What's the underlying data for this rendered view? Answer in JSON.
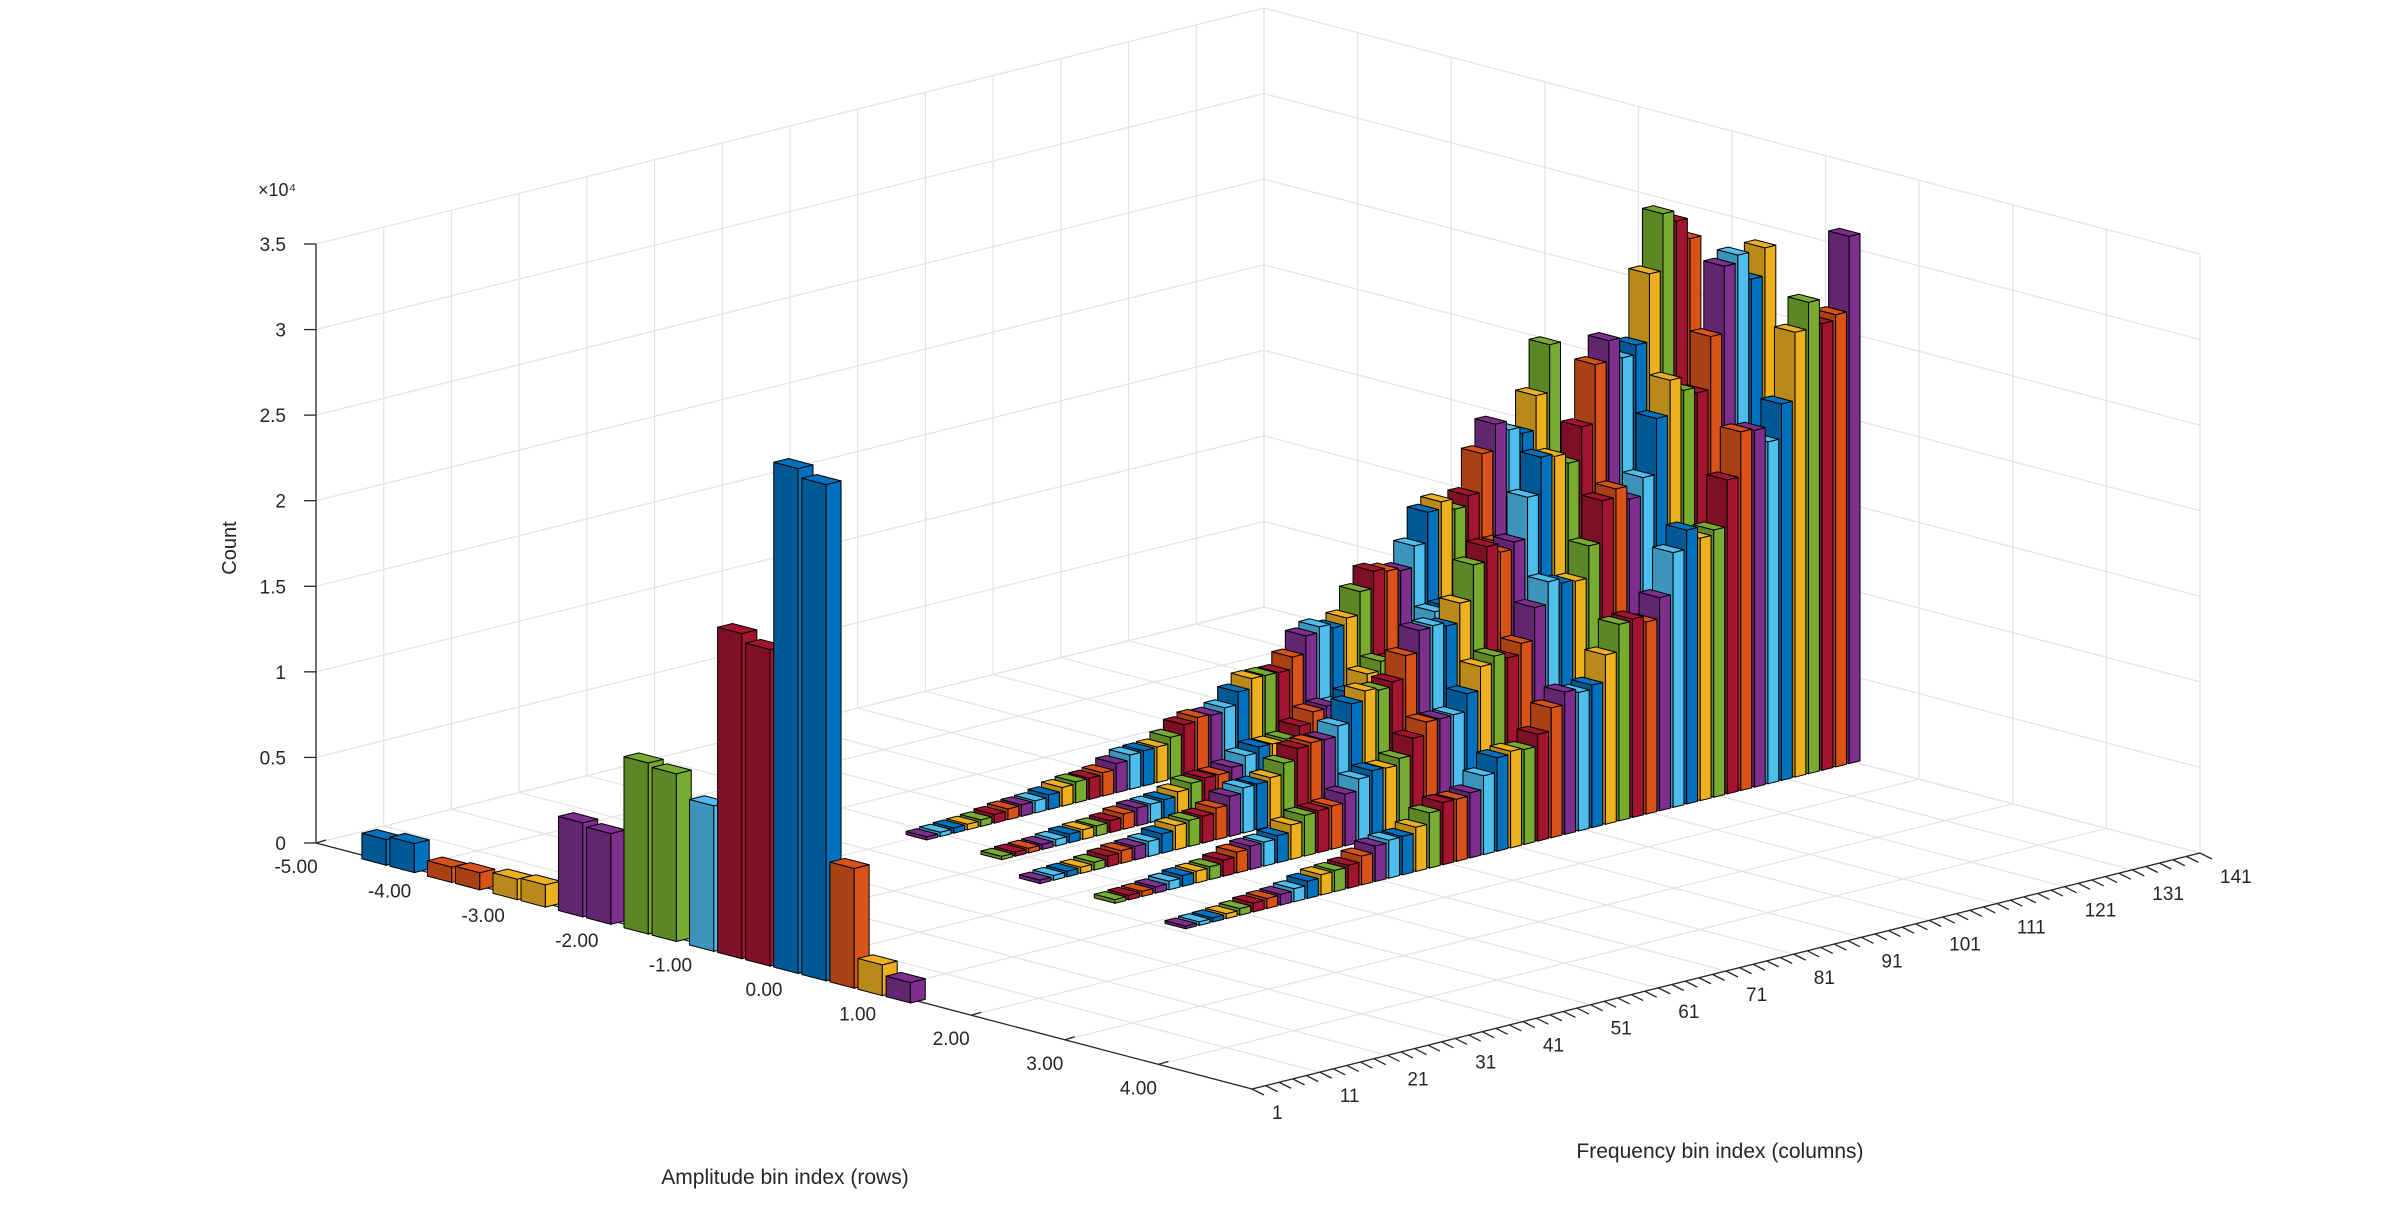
{
  "chart_data": {
    "type": "bar3",
    "title": "",
    "zlabel": "Count",
    "xlabel": "Amplitude bin index (rows)",
    "ylabel": "Frequency bin index (columns)",
    "z_exponent_label": "×10⁴",
    "z_ticks": [
      0,
      0.5,
      1,
      1.5,
      2,
      2.5,
      3,
      3.5
    ],
    "z_tick_labels": [
      "0",
      "0.5",
      "1",
      "1.5",
      "2",
      "2.5",
      "3",
      "3.5"
    ],
    "z_scale": 10000,
    "zlim": [
      0,
      35000
    ],
    "row_ticks": [
      -5,
      -4,
      -3,
      -2,
      -1,
      0,
      1,
      2,
      3,
      4
    ],
    "row_tick_labels": [
      "-5.00",
      "-4.00",
      "-3.00",
      "-2.00",
      "-1.00",
      "0.00",
      "1.00",
      "2.00",
      "3.00",
      "4.00"
    ],
    "col_ticks": [
      1,
      11,
      21,
      31,
      41,
      51,
      61,
      71,
      81,
      91,
      101,
      111,
      121,
      131,
      141
    ],
    "col_tick_labels": [
      "1",
      "11",
      "21",
      "31",
      "41",
      "51",
      "61",
      "71",
      "81",
      "91",
      "101",
      "111",
      "121",
      "131",
      "141"
    ],
    "column_range": [
      1,
      141
    ],
    "grid": true,
    "series_colors": [
      "#0072BD",
      "#D95319",
      "#EDB120",
      "#7E2F8E",
      "#77AC30",
      "#4DBEEE",
      "#A2142F"
    ],
    "bars": [
      {
        "row": -4.3,
        "col": 1,
        "value": 1500,
        "color": "#0072BD"
      },
      {
        "row": -4.0,
        "col": 1,
        "value": 1700,
        "color": "#0072BD"
      },
      {
        "row": -3.6,
        "col": 1,
        "value": 900,
        "color": "#D95319"
      },
      {
        "row": -3.3,
        "col": 1,
        "value": 1000,
        "color": "#D95319"
      },
      {
        "row": -2.9,
        "col": 1,
        "value": 1200,
        "color": "#EDB120"
      },
      {
        "row": -2.6,
        "col": 1,
        "value": 1300,
        "color": "#EDB120"
      },
      {
        "row": -2.2,
        "col": 1,
        "value": 5500,
        "color": "#7E2F8E"
      },
      {
        "row": -1.9,
        "col": 1,
        "value": 5300,
        "color": "#7E2F8E"
      },
      {
        "row": -1.5,
        "col": 1,
        "value": 10000,
        "color": "#77AC30"
      },
      {
        "row": -1.2,
        "col": 1,
        "value": 9800,
        "color": "#77AC30"
      },
      {
        "row": -0.8,
        "col": 1,
        "value": 8500,
        "color": "#4DBEEE"
      },
      {
        "row": -0.5,
        "col": 1,
        "value": 19000,
        "color": "#A2142F"
      },
      {
        "row": -0.2,
        "col": 1,
        "value": 18500,
        "color": "#A2142F"
      },
      {
        "row": 0.1,
        "col": 1,
        "value": 29500,
        "color": "#0072BD"
      },
      {
        "row": 0.4,
        "col": 1,
        "value": 29000,
        "color": "#0072BD"
      },
      {
        "row": 0.7,
        "col": 1,
        "value": 7000,
        "color": "#D95319"
      },
      {
        "row": 1.0,
        "col": 1,
        "value": 1800,
        "color": "#EDB120"
      },
      {
        "row": 1.3,
        "col": 1,
        "value": 1200,
        "color": "#7E2F8E"
      }
    ],
    "ridge_peaks": [
      {
        "col": 141,
        "row": -0.5,
        "value": 33500
      },
      {
        "col": 141,
        "row": 0.3,
        "value": 33500
      },
      {
        "col": 141,
        "row": 1.2,
        "value": 33000
      },
      {
        "col": 141,
        "row": -2.0,
        "value": 20000
      },
      {
        "col": 141,
        "row": -1.2,
        "value": 19000
      }
    ]
  }
}
